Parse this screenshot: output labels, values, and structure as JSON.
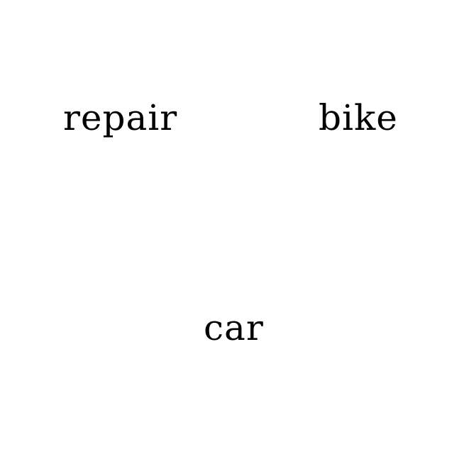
{
  "words": [
    {
      "text": "repair"
    },
    {
      "text": "bike"
    },
    {
      "text": "car"
    }
  ],
  "colors": {
    "background": "#ffffff",
    "text": "#000000"
  }
}
